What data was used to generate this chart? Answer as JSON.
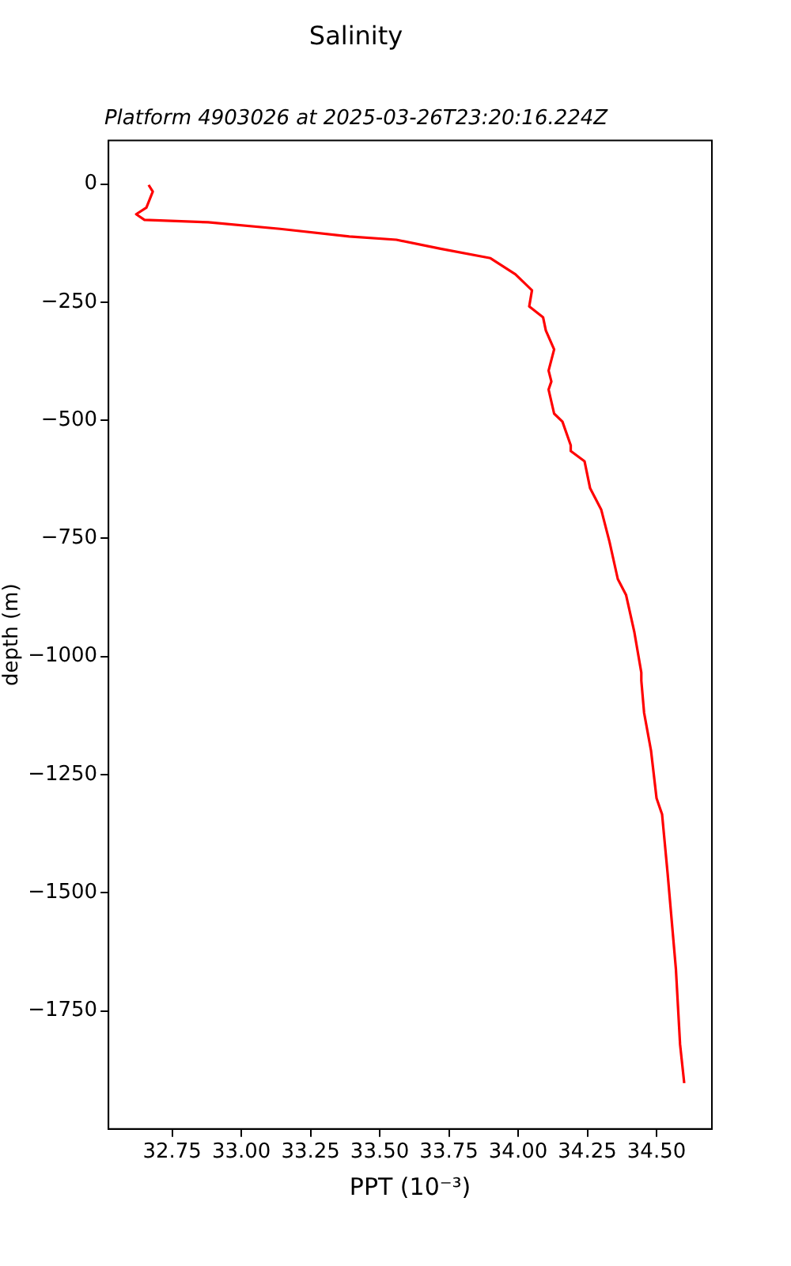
{
  "chart_data": {
    "type": "line",
    "title": "Salinity",
    "subtitle": "Platform 4903026 at 2025-03-26T23:20:16.224Z",
    "xlabel": "PPT (10⁻³)",
    "ylabel": "depth (m)",
    "xlim": [
      32.52,
      34.7
    ],
    "ylim": [
      -2000,
      92
    ],
    "xticks": [
      {
        "value": 32.75,
        "label": "32.75"
      },
      {
        "value": 33,
        "label": "33.00"
      },
      {
        "value": 33.25,
        "label": "33.25"
      },
      {
        "value": 33.5,
        "label": "33.50"
      },
      {
        "value": 33.75,
        "label": "33.75"
      },
      {
        "value": 34,
        "label": "34.00"
      },
      {
        "value": 34.25,
        "label": "34.25"
      },
      {
        "value": 34.5,
        "label": "34.50"
      }
    ],
    "yticks": [
      {
        "value": 0,
        "label": "0"
      },
      {
        "value": -250,
        "label": "−250"
      },
      {
        "value": -500,
        "label": "−500"
      },
      {
        "value": -750,
        "label": "−750"
      },
      {
        "value": -1000,
        "label": "−1000"
      },
      {
        "value": -1250,
        "label": "−1250"
      },
      {
        "value": -1500,
        "label": "−1500"
      },
      {
        "value": -1750,
        "label": "−1750"
      }
    ],
    "grid": false,
    "legend": false,
    "marker": "none",
    "line_style": "solid",
    "series": [
      {
        "color": "#ff0000",
        "x": [
          32.665,
          32.68,
          32.657,
          32.62,
          32.65,
          32.88,
          33.14,
          33.39,
          33.56,
          33.72,
          33.9,
          33.99,
          34.05,
          34.04,
          34.09,
          34.1,
          34.13,
          34.11,
          34.12,
          34.11,
          34.13,
          34.16,
          34.19,
          34.19,
          34.24,
          34.26,
          34.3,
          34.33,
          34.36,
          34.39,
          34.42,
          34.445,
          34.445,
          34.455,
          34.48,
          34.5,
          34.52,
          34.54,
          34.57,
          34.585,
          34.6
        ],
        "values": [
          -2,
          -16,
          -50,
          -64,
          -76,
          -81,
          -95,
          -111,
          -118,
          -137,
          -157,
          -191,
          -225,
          -259,
          -282,
          -310,
          -350,
          -395,
          -418,
          -435,
          -486,
          -503,
          -553,
          -565,
          -587,
          -644,
          -689,
          -757,
          -836,
          -870,
          -949,
          -1034,
          -1051,
          -1119,
          -1199,
          -1300,
          -1334,
          -1459,
          -1662,
          -1821,
          -1903
        ]
      }
    ]
  }
}
